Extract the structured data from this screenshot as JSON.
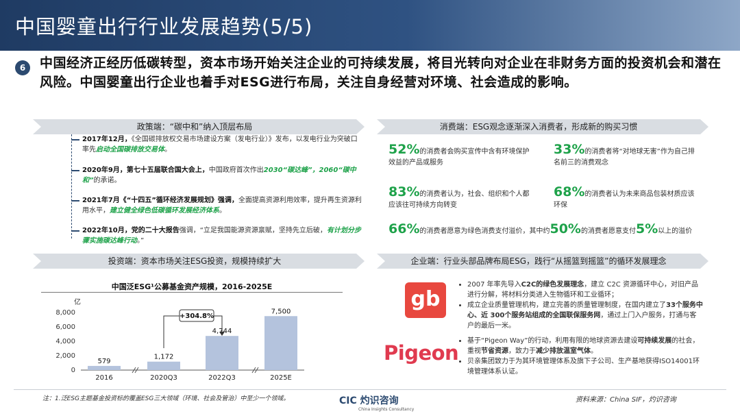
{
  "header": {
    "title": "中国婴童出行行业发展趋势(5/5)"
  },
  "intro": {
    "number": "6",
    "text": "中国经济正经历低碳转型，资本市场开始关注企业的可持续发展，将目光转向对企业在非财务方面的投资机会和潜在风险。中国婴童出行企业也着手对ESG进行布局，关注自身经营对环境、社会造成的影响。"
  },
  "policy": {
    "heading": "政策端：“碳中和”纳入顶层布局",
    "items": [
      {
        "date": "2017年12月，",
        "a": "《全国碳排放权交易市场建设方案（发电行业）》发布，以发电行业为突破口率先",
        "g": "启动全国碳排放交易体",
        "b": "。"
      },
      {
        "date": "2020年9月，第七十五届联合国大会上，",
        "a": "中国政府首次作出",
        "g": "2030“碳达峰”，2060“碳中和”",
        "b": "的承诺。"
      },
      {
        "date": "2021年7月《“十四五”循环经济发展规划》强调，",
        "a": "全面提高资源利用效率，提升再生资源利用水平，",
        "g": "建立健全绿色低碳循环发展经济体系",
        "b": "。"
      },
      {
        "date": "2022年10月，党的二十大报告",
        "a": "强调，“立足我国能源资源禀赋，坚持先立后破，",
        "g": "有计划分步骤实施碳达峰行动",
        "b": "。”"
      }
    ]
  },
  "consumer": {
    "heading": "消费端：ESG观念逐渐深入消费者，形成新的购买习惯",
    "stats": [
      {
        "pct": "52%",
        "text": "的消费者会购买宣传中含有环境保护效益的产品或服务"
      },
      {
        "pct": "33%",
        "text": "的消费者将“对地球无害”作为自己排名前三的消费观念"
      },
      {
        "pct": "83%",
        "text": "的消费者认为，社会、组织和个人都应该往可持续方向转变"
      },
      {
        "pct": "68%",
        "text": "的消费者认为未来商品包装材质应该环保"
      }
    ],
    "wide": {
      "pct1": "66%",
      "t1": "的消费者愿意为绿色消费支付溢价，其中约",
      "pct2": "50%",
      "t2": "的消费者愿意支付",
      "pct3": "5%",
      "t3": "以上的溢价"
    }
  },
  "investment": {
    "heading": "投资端：资本市场关注ESG投资，规模持续扩大"
  },
  "chart_data": {
    "type": "bar",
    "title": "中国泛ESG¹公募基金资产规模，2016-2025E",
    "ylabel": "亿",
    "categories": [
      "2016",
      "2020Q3",
      "2022Q3",
      "2025E"
    ],
    "values": [
      579,
      1172,
      4744,
      7500
    ],
    "value_labels": [
      "579",
      "1,172",
      "4,744",
      "7,500"
    ],
    "yticks": [
      "0",
      "2,000",
      "4,000",
      "6,000",
      "8,000"
    ],
    "ylim": [
      0,
      8000
    ],
    "growth_label": "+304.8%",
    "bar_color": "#b4c3dd"
  },
  "enterprise": {
    "heading": "企业端：行业头部品牌布局ESG，践行“从摇篮到摇篮”的循环发展理念",
    "gb_logo": "gb",
    "gb_items": [
      {
        "pre": "2007 年率先导入",
        "b": "C2C的绿色发展理念",
        "post": "，建立 C2C 资源循环中心，对旧产品进行分解，将材料分类进入生物循环和工业循环；"
      },
      {
        "pre": "成立企业质量管理机构，建立完善的质量管理制度，在国内建立了",
        "b": "33个服务中心、近 300个服务站组成的全国联保服务网",
        "post": "，通过上门入户服务，打通与客户的最后一米。"
      }
    ],
    "pigeon_logo": "Pigeon",
    "pigeon_items": [
      {
        "pre": "基于“Pigeon Way”的行动，利用有限的地球资源去建设",
        "b": "可持续发展",
        "post": "的社会，重视",
        "b2": "节省资源",
        "post2": "，致力于",
        "b3": "减少排放温室气体",
        "post3": "。"
      },
      {
        "pre": "贝亲集团致力于为其环境管理体系及旗下子公司、生产基地获得ISO14001环境管理体系认证。",
        "b": "",
        "post": ""
      }
    ]
  },
  "footer": {
    "note": "注：1.泛ESG主题基金投资标的覆盖ESG三大领域（环境、社会及管治）中至少一个领域。",
    "logo_main": "CIC 灼识咨询",
    "logo_sub": "China Insights Consultancy",
    "source": "资料来源：China SIF，灼识咨询"
  }
}
